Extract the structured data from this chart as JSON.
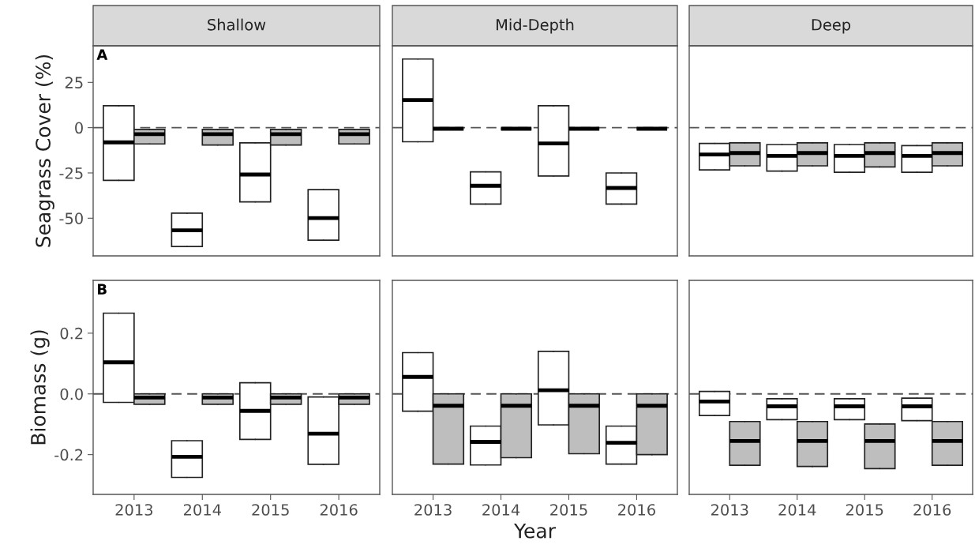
{
  "chart_data": [
    {
      "type": "box",
      "title": "Shallow",
      "ylabel": "Seagrass Cover (%)",
      "annotations": [
        "A"
      ],
      "tick_labels": "y",
      "categories": [
        "2013",
        "2014",
        "2015",
        "2016"
      ],
      "ylim": [
        -70.8,
        45.2
      ],
      "yticks": [
        25,
        0,
        -25,
        -50
      ],
      "ref_lines": [
        {
          "axis": "y",
          "value": 0,
          "line_style": "dashed"
        }
      ],
      "series": [
        {
          "color": "#ffffff",
          "boxes": [
            {
              "low": -29.1,
              "q1": -29.1,
              "median": -8.1,
              "q3": 12.1,
              "high": 12.1
            },
            {
              "low": -65.6,
              "q1": -65.6,
              "median": -56.7,
              "q3": -47.2,
              "high": -47.2
            },
            {
              "low": -41.0,
              "q1": -41.0,
              "median": -25.9,
              "q3": -8.4,
              "high": -8.4
            },
            {
              "low": -62.1,
              "q1": -62.1,
              "median": -49.9,
              "q3": -34.2,
              "high": -34.2
            }
          ]
        },
        {
          "color": "#bebebe",
          "boxes": [
            {
              "low": -9.0,
              "q1": -9.0,
              "median": -3.6,
              "q3": -1.0,
              "high": -1.0
            },
            {
              "low": -9.6,
              "q1": -9.6,
              "median": -3.6,
              "q3": -1.0,
              "high": -1.0
            },
            {
              "low": -9.6,
              "q1": -9.6,
              "median": -3.6,
              "q3": -1.0,
              "high": -1.0
            },
            {
              "low": -9.0,
              "q1": -9.0,
              "median": -3.6,
              "q3": -1.0,
              "high": -1.0
            }
          ]
        }
      ]
    },
    {
      "type": "box",
      "title": "Mid-Depth",
      "tick_labels": false,
      "categories": [
        "2013",
        "2014",
        "2015",
        "2016"
      ],
      "ylim": [
        -70.8,
        45.2
      ],
      "ref_lines": [
        {
          "axis": "y",
          "value": 0,
          "line_style": "dashed"
        }
      ],
      "series": [
        {
          "color": "#ffffff",
          "boxes": [
            {
              "low": -7.8,
              "q1": -7.8,
              "median": 15.3,
              "q3": 37.9,
              "high": 37.9
            },
            {
              "low": -42.2,
              "q1": -42.2,
              "median": -32.1,
              "q3": -24.4,
              "high": -24.4
            },
            {
              "low": -26.7,
              "q1": -26.7,
              "median": -8.7,
              "q3": 12.1,
              "high": 12.1
            },
            {
              "low": -42.2,
              "q1": -42.2,
              "median": -33.3,
              "q3": -25.0,
              "high": -25.0
            }
          ]
        },
        {
          "color": "#222222",
          "boxes": [
            {
              "low": -0.6,
              "q1": -0.6,
              "median": -0.6,
              "q3": -0.6,
              "high": -0.6
            },
            {
              "low": -0.6,
              "q1": -0.6,
              "median": -0.6,
              "q3": -0.6,
              "high": -0.6
            },
            {
              "low": -0.6,
              "q1": -0.6,
              "median": -0.6,
              "q3": -0.6,
              "high": -0.6
            },
            {
              "low": -0.6,
              "q1": -0.6,
              "median": -0.6,
              "q3": -0.6,
              "high": -0.6
            }
          ]
        }
      ]
    },
    {
      "type": "box",
      "title": "Deep",
      "tick_labels": false,
      "categories": [
        "2013",
        "2014",
        "2015",
        "2016"
      ],
      "ylim": [
        -70.8,
        45.2
      ],
      "ref_lines": [
        {
          "axis": "y",
          "value": 0,
          "line_style": "dashed"
        }
      ],
      "series": [
        {
          "color": "#ffffff",
          "boxes": [
            {
              "low": -23.3,
              "q1": -23.3,
              "median": -14.8,
              "q3": -8.7,
              "high": -8.7
            },
            {
              "low": -24.0,
              "q1": -24.0,
              "median": -15.6,
              "q3": -9.3,
              "high": -9.3
            },
            {
              "low": -24.6,
              "q1": -24.6,
              "median": -15.6,
              "q3": -9.3,
              "high": -9.3
            },
            {
              "low": -24.6,
              "q1": -24.6,
              "median": -15.6,
              "q3": -9.9,
              "high": -9.9
            }
          ]
        },
        {
          "color": "#bebebe",
          "boxes": [
            {
              "low": -21.1,
              "q1": -21.1,
              "median": -14.0,
              "q3": -8.4,
              "high": -8.4
            },
            {
              "low": -21.1,
              "q1": -21.1,
              "median": -14.0,
              "q3": -8.4,
              "high": -8.4
            },
            {
              "low": -21.7,
              "q1": -21.7,
              "median": -14.0,
              "q3": -8.4,
              "high": -8.4
            },
            {
              "low": -21.1,
              "q1": -21.1,
              "median": -14.0,
              "q3": -8.4,
              "high": -8.4
            }
          ]
        }
      ]
    },
    {
      "type": "box",
      "ylabel": "Biomass (g)",
      "annotations": [
        "B"
      ],
      "categories": [
        "2013",
        "2014",
        "2015",
        "2016"
      ],
      "ylim": [
        -0.331,
        0.374
      ],
      "yticks": [
        0.2,
        {
          "value": 0,
          "label": "0.0"
        },
        -0.2
      ],
      "ref_lines": [
        {
          "axis": "y",
          "value": 0,
          "line_style": "dashed"
        }
      ],
      "series": [
        {
          "color": "#ffffff",
          "boxes": [
            {
              "low": -0.028,
              "q1": -0.028,
              "median": 0.104,
              "q3": 0.266,
              "high": 0.266
            },
            {
              "low": -0.275,
              "q1": -0.275,
              "median": -0.207,
              "q3": -0.154,
              "high": -0.154
            },
            {
              "low": -0.15,
              "q1": -0.15,
              "median": -0.056,
              "q3": 0.037,
              "high": 0.037
            },
            {
              "low": -0.232,
              "q1": -0.232,
              "median": -0.131,
              "q3": -0.01,
              "high": -0.01
            }
          ]
        },
        {
          "color": "#bebebe",
          "boxes": [
            {
              "low": -0.034,
              "q1": -0.034,
              "median": -0.012,
              "q3": 0.0,
              "high": 0.0
            },
            {
              "low": -0.034,
              "q1": -0.034,
              "median": -0.012,
              "q3": 0.0,
              "high": 0.0
            },
            {
              "low": -0.034,
              "q1": -0.034,
              "median": -0.012,
              "q3": 0.0,
              "high": 0.0
            },
            {
              "low": -0.034,
              "q1": -0.034,
              "median": -0.012,
              "q3": 0.0,
              "high": 0.0
            }
          ]
        }
      ]
    },
    {
      "type": "box",
      "xlabel": "Year",
      "tick_labels": "x",
      "categories": [
        "2013",
        "2014",
        "2015",
        "2016"
      ],
      "ylim": [
        -0.331,
        0.374
      ],
      "ref_lines": [
        {
          "axis": "y",
          "value": 0,
          "line_style": "dashed"
        }
      ],
      "series": [
        {
          "color": "#ffffff",
          "boxes": [
            {
              "low": -0.057,
              "q1": -0.057,
              "median": 0.056,
              "q3": 0.136,
              "high": 0.136
            },
            {
              "low": -0.234,
              "q1": -0.234,
              "median": -0.158,
              "q3": -0.106,
              "high": -0.106
            },
            {
              "low": -0.102,
              "q1": -0.102,
              "median": 0.012,
              "q3": 0.14,
              "high": 0.14
            },
            {
              "low": -0.231,
              "q1": -0.231,
              "median": -0.161,
              "q3": -0.106,
              "high": -0.106
            }
          ]
        },
        {
          "color": "#bebebe",
          "boxes": [
            {
              "low": -0.231,
              "q1": -0.231,
              "median": -0.039,
              "q3": 0.0,
              "high": 0.0
            },
            {
              "low": -0.21,
              "q1": -0.21,
              "median": -0.039,
              "q3": 0.0,
              "high": 0.0
            },
            {
              "low": -0.197,
              "q1": -0.197,
              "median": -0.039,
              "q3": 0.0,
              "high": 0.0
            },
            {
              "low": -0.2,
              "q1": -0.2,
              "median": -0.039,
              "q3": 0.0,
              "high": 0.0
            }
          ]
        }
      ]
    },
    {
      "type": "box",
      "tick_labels": "x",
      "categories": [
        "2013",
        "2014",
        "2015",
        "2016"
      ],
      "ylim": [
        -0.331,
        0.374
      ],
      "ref_lines": [
        {
          "axis": "y",
          "value": 0,
          "line_style": "dashed"
        }
      ],
      "series": [
        {
          "color": "#ffffff",
          "boxes": [
            {
              "low": -0.071,
              "q1": -0.071,
              "median": -0.025,
              "q3": 0.008,
              "high": 0.008
            },
            {
              "low": -0.085,
              "q1": -0.085,
              "median": -0.041,
              "q3": -0.016,
              "high": -0.016
            },
            {
              "low": -0.085,
              "q1": -0.085,
              "median": -0.041,
              "q3": -0.016,
              "high": -0.016
            },
            {
              "low": -0.088,
              "q1": -0.088,
              "median": -0.041,
              "q3": -0.014,
              "high": -0.014
            }
          ]
        },
        {
          "color": "#bebebe",
          "boxes": [
            {
              "low": -0.235,
              "q1": -0.235,
              "median": -0.155,
              "q3": -0.091,
              "high": -0.091
            },
            {
              "low": -0.239,
              "q1": -0.239,
              "median": -0.155,
              "q3": -0.091,
              "high": -0.091
            },
            {
              "low": -0.246,
              "q1": -0.246,
              "median": -0.155,
              "q3": -0.099,
              "high": -0.099
            },
            {
              "low": -0.235,
              "q1": -0.235,
              "median": -0.155,
              "q3": -0.091,
              "high": -0.091
            }
          ]
        }
      ]
    }
  ]
}
